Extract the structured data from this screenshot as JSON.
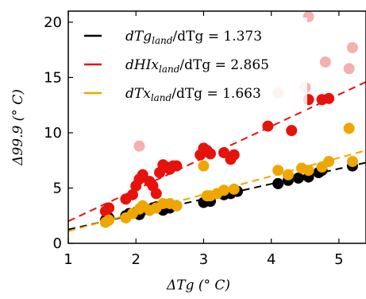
{
  "chart_data": {
    "type": "scatter",
    "title": "",
    "xlabel": "ΔTg (° C)",
    "ylabel": "Δ99.9 (° C)",
    "xlim": [
      1,
      5.4
    ],
    "ylim": [
      0,
      21
    ],
    "xticks": [
      1,
      2,
      3,
      4,
      5
    ],
    "yticks": [
      0,
      5,
      10,
      15,
      20
    ],
    "xtick_labels": [
      "1",
      "2",
      "3",
      "4",
      "5"
    ],
    "ytick_labels": [
      "0",
      "5",
      "10",
      "15",
      "20"
    ],
    "grid": false,
    "legend_position": "top-left",
    "series": [
      {
        "name": "dTg_land/dTg = 1.373",
        "color": "#000000",
        "points": [
          [
            1.55,
            2.1
          ],
          [
            1.6,
            2.3
          ],
          [
            1.85,
            2.5
          ],
          [
            1.9,
            2.7
          ],
          [
            2.0,
            2.8
          ],
          [
            2.05,
            2.6
          ],
          [
            2.1,
            3.0
          ],
          [
            2.2,
            3.0
          ],
          [
            2.25,
            3.2
          ],
          [
            2.3,
            3.3
          ],
          [
            2.4,
            3.0
          ],
          [
            2.45,
            3.2
          ],
          [
            2.5,
            3.2
          ],
          [
            2.6,
            3.4
          ],
          [
            3.0,
            3.7
          ],
          [
            3.05,
            4.0
          ],
          [
            3.1,
            3.8
          ],
          [
            3.3,
            4.4
          ],
          [
            3.4,
            4.5
          ],
          [
            3.5,
            4.7
          ],
          [
            4.1,
            5.4
          ],
          [
            4.25,
            5.7
          ],
          [
            4.4,
            5.9
          ],
          [
            4.55,
            6.0
          ],
          [
            4.7,
            6.4
          ],
          [
            4.75,
            6.6
          ],
          [
            5.2,
            7.0
          ]
        ],
        "fit": {
          "x": [
            1,
            5.4
          ],
          "y": [
            1.25,
            7.3
          ]
        }
      },
      {
        "name": "dHIx_land/dTg = 2.865",
        "color": "#e8120c",
        "points": [
          [
            1.55,
            2.9
          ],
          [
            1.6,
            3.2
          ],
          [
            1.85,
            4.0
          ],
          [
            1.95,
            4.4
          ],
          [
            2.0,
            5.2
          ],
          [
            2.05,
            5.8
          ],
          [
            2.1,
            6.2
          ],
          [
            2.2,
            5.6
          ],
          [
            2.25,
            5.2
          ],
          [
            2.3,
            4.5
          ],
          [
            2.35,
            6.4
          ],
          [
            2.4,
            7.1
          ],
          [
            2.45,
            6.9
          ],
          [
            2.5,
            6.7
          ],
          [
            2.55,
            7.0
          ],
          [
            2.6,
            7.0
          ],
          [
            2.95,
            8.0
          ],
          [
            3.0,
            8.6
          ],
          [
            3.05,
            8.4
          ],
          [
            3.1,
            8.1
          ],
          [
            3.3,
            8.2
          ],
          [
            3.4,
            7.6
          ],
          [
            3.45,
            8.0
          ],
          [
            3.95,
            10.6
          ],
          [
            4.3,
            10.2
          ],
          [
            4.55,
            13.0
          ],
          [
            4.75,
            13.0
          ],
          [
            4.85,
            13.1
          ]
        ],
        "fit": {
          "x": [
            1,
            5.4
          ],
          "y": [
            2.0,
            14.6
          ]
        }
      },
      {
        "name": "dTx_land/dTg = 1.663",
        "color": "#f0a600",
        "points": [
          [
            1.55,
            1.9
          ],
          [
            1.6,
            2.1
          ],
          [
            1.85,
            2.3
          ],
          [
            1.95,
            2.7
          ],
          [
            2.05,
            3.1
          ],
          [
            2.1,
            3.4
          ],
          [
            2.2,
            3.0
          ],
          [
            2.3,
            3.2
          ],
          [
            2.4,
            3.6
          ],
          [
            2.5,
            3.6
          ],
          [
            2.6,
            3.4
          ],
          [
            3.0,
            7.0
          ],
          [
            3.05,
            4.3
          ],
          [
            3.1,
            4.3
          ],
          [
            3.2,
            4.5
          ],
          [
            3.3,
            4.8
          ],
          [
            3.45,
            4.9
          ],
          [
            4.1,
            6.6
          ],
          [
            4.25,
            6.2
          ],
          [
            4.45,
            6.8
          ],
          [
            4.55,
            6.6
          ],
          [
            4.75,
            6.9
          ],
          [
            4.85,
            7.4
          ],
          [
            5.15,
            10.4
          ],
          [
            5.2,
            7.4
          ]
        ],
        "fit": {
          "x": [
            1,
            5.4
          ],
          "y": [
            1.1,
            8.4
          ]
        }
      }
    ],
    "faded_points": {
      "color": "#f4b0b0",
      "points": [
        [
          2.05,
          8.8
        ],
        [
          4.1,
          13.6
        ],
        [
          4.5,
          14.1
        ],
        [
          4.55,
          20.5
        ],
        [
          4.8,
          16.4
        ],
        [
          5.15,
          15.8
        ],
        [
          5.2,
          17.7
        ]
      ]
    }
  },
  "legend": [
    {
      "prefix": "dTg",
      "subscript": "land",
      "suffix": "/dTg = 1.373",
      "color": "#000000"
    },
    {
      "prefix": "dHIx",
      "subscript": "land",
      "suffix": "/dTg = 2.865",
      "color": "#e8120c"
    },
    {
      "prefix": "dTx",
      "subscript": "land",
      "suffix": "/dTg = 1.663",
      "color": "#f0a600"
    }
  ]
}
